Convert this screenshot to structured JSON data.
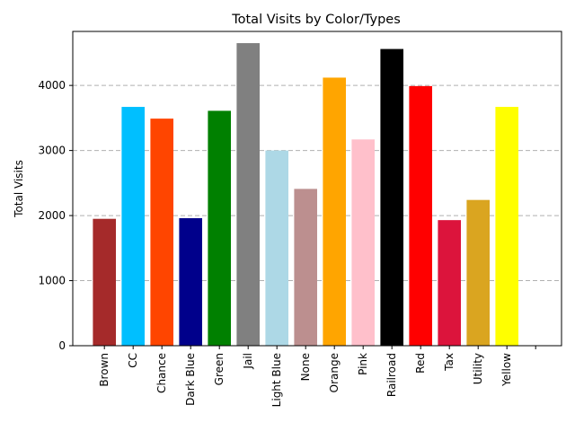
{
  "chart_data": {
    "type": "bar",
    "title": "Total Visits by Color/Types",
    "xlabel": "",
    "ylabel": "Total Visits",
    "ylim": [
      0,
      4830
    ],
    "yticks": [
      0,
      1000,
      2000,
      3000,
      4000
    ],
    "grid": "y-dashed",
    "categories": [
      "Brown",
      "CC",
      "Chance",
      "Dark Blue",
      "Green",
      "Jail",
      "Light Blue",
      "None",
      "Orange",
      "Pink",
      "Railroad",
      "Red",
      "Tax",
      "Utility",
      "Yellow"
    ],
    "values": [
      1950,
      3670,
      3490,
      1960,
      3610,
      4650,
      3000,
      2410,
      4120,
      3170,
      4560,
      3990,
      1930,
      2240,
      3670
    ],
    "colors": [
      "#a52a2a",
      "#00bfff",
      "#ff4500",
      "#00008b",
      "#008000",
      "#808080",
      "#add8e6",
      "#bc8f8f",
      "#ffa500",
      "#ffc0cb",
      "#000000",
      "#ff0000",
      "#dc143c",
      "#daa520",
      "#ffff00"
    ]
  }
}
